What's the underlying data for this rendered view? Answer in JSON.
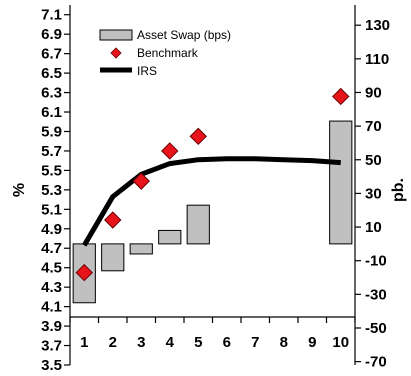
{
  "chart_data": {
    "type": "bar",
    "title": "",
    "xlabel": "",
    "ylabel": "%",
    "y2label": "pb.",
    "x_ticks": [
      "1",
      "2",
      "3",
      "4",
      "5",
      "6",
      "7",
      "8",
      "9",
      "10"
    ],
    "ylim": [
      3.5,
      7.2
    ],
    "y_ticks": [
      "3.5",
      "3.7",
      "3.9",
      "4.1",
      "4.3",
      "4.5",
      "4.7",
      "4.9",
      "5.1",
      "5.3",
      "5.5",
      "5.7",
      "5.9",
      "6.1",
      "6.3",
      "6.5",
      "6.7",
      "6.9",
      "7.1"
    ],
    "y2lim": [
      -72,
      142
    ],
    "y2_ticks": [
      "-70",
      "-50",
      "-30",
      "-10",
      "10",
      "30",
      "50",
      "70",
      "90",
      "110",
      "130"
    ],
    "grid": false,
    "legend_position": "top-left",
    "series": [
      {
        "name": "Asset Swap (bps)",
        "type": "bar",
        "axis": "right",
        "x": [
          1,
          2,
          3,
          4,
          5,
          10
        ],
        "values": [
          -35,
          -16,
          -6,
          8,
          23,
          73
        ],
        "color": "#c0c0c0"
      },
      {
        "name": "Benchmark",
        "type": "scatter",
        "axis": "left",
        "x": [
          1,
          2,
          3,
          4,
          5,
          10
        ],
        "values": [
          4.45,
          4.99,
          5.39,
          5.7,
          5.85,
          6.26
        ],
        "color": "#e8141b"
      },
      {
        "name": "IRS",
        "type": "line",
        "axis": "left",
        "x": [
          1,
          2,
          3,
          4,
          5,
          6,
          7,
          8,
          9,
          10
        ],
        "values": [
          4.73,
          5.23,
          5.46,
          5.57,
          5.61,
          5.62,
          5.62,
          5.61,
          5.6,
          5.58
        ],
        "color": "#000000"
      }
    ]
  }
}
